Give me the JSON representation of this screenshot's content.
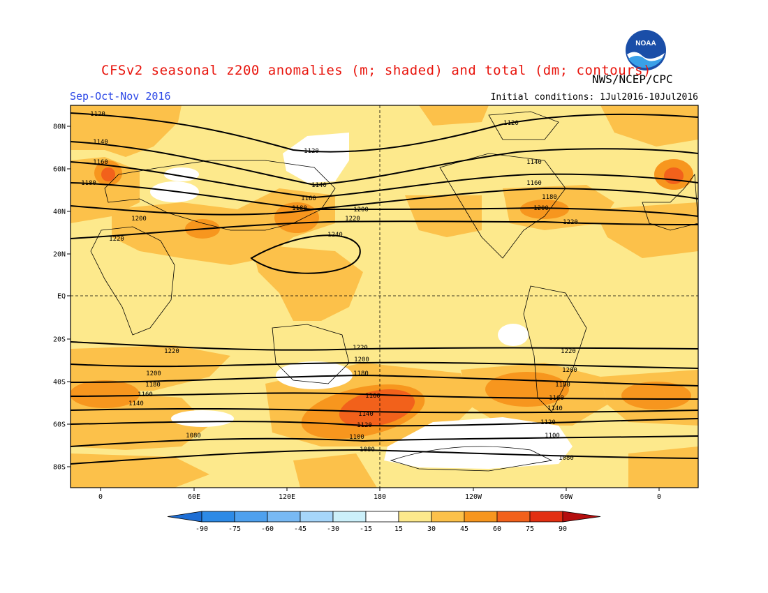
{
  "title": "CFSv2 seasonal z200 anomalies (m; shaded) and total (dm; contours)",
  "agency": "NWS/NCEP/CPC",
  "season": "Sep-Oct-Nov 2016",
  "initial_conditions": "Initial conditions: 1Jul2016-10Jul2016",
  "logo_text": "NOAA",
  "lat_labels": [
    "80N",
    "60N",
    "40N",
    "20N",
    "EQ",
    "20S",
    "40S",
    "60S",
    "80S"
  ],
  "lon_labels": [
    "0",
    "60E",
    "120E",
    "180",
    "120W",
    "60W",
    "0"
  ],
  "colorbar": {
    "labels": [
      "-90",
      "-75",
      "-60",
      "-45",
      "-30",
      "-15",
      "15",
      "30",
      "45",
      "60",
      "75",
      "90"
    ],
    "colors": [
      "#1e6ed4",
      "#2d8ae6",
      "#4ea0ee",
      "#78b9f4",
      "#a6d6fa",
      "#ccf0fa",
      "#ffffff",
      "#fde98c",
      "#fcc14a",
      "#f7961e",
      "#f2611b",
      "#e22f12",
      "#b40e0e"
    ]
  },
  "contour_labels": [
    "1120",
    "1140",
    "1160",
    "1180",
    "1200",
    "1220",
    "1240",
    "1220",
    "1200",
    "1180",
    "1160",
    "1140",
    "1120",
    "1100",
    "1080"
  ],
  "colors": {
    "title": "#e8140c",
    "season": "#2a46e6",
    "map_background": "#fde98c"
  }
}
